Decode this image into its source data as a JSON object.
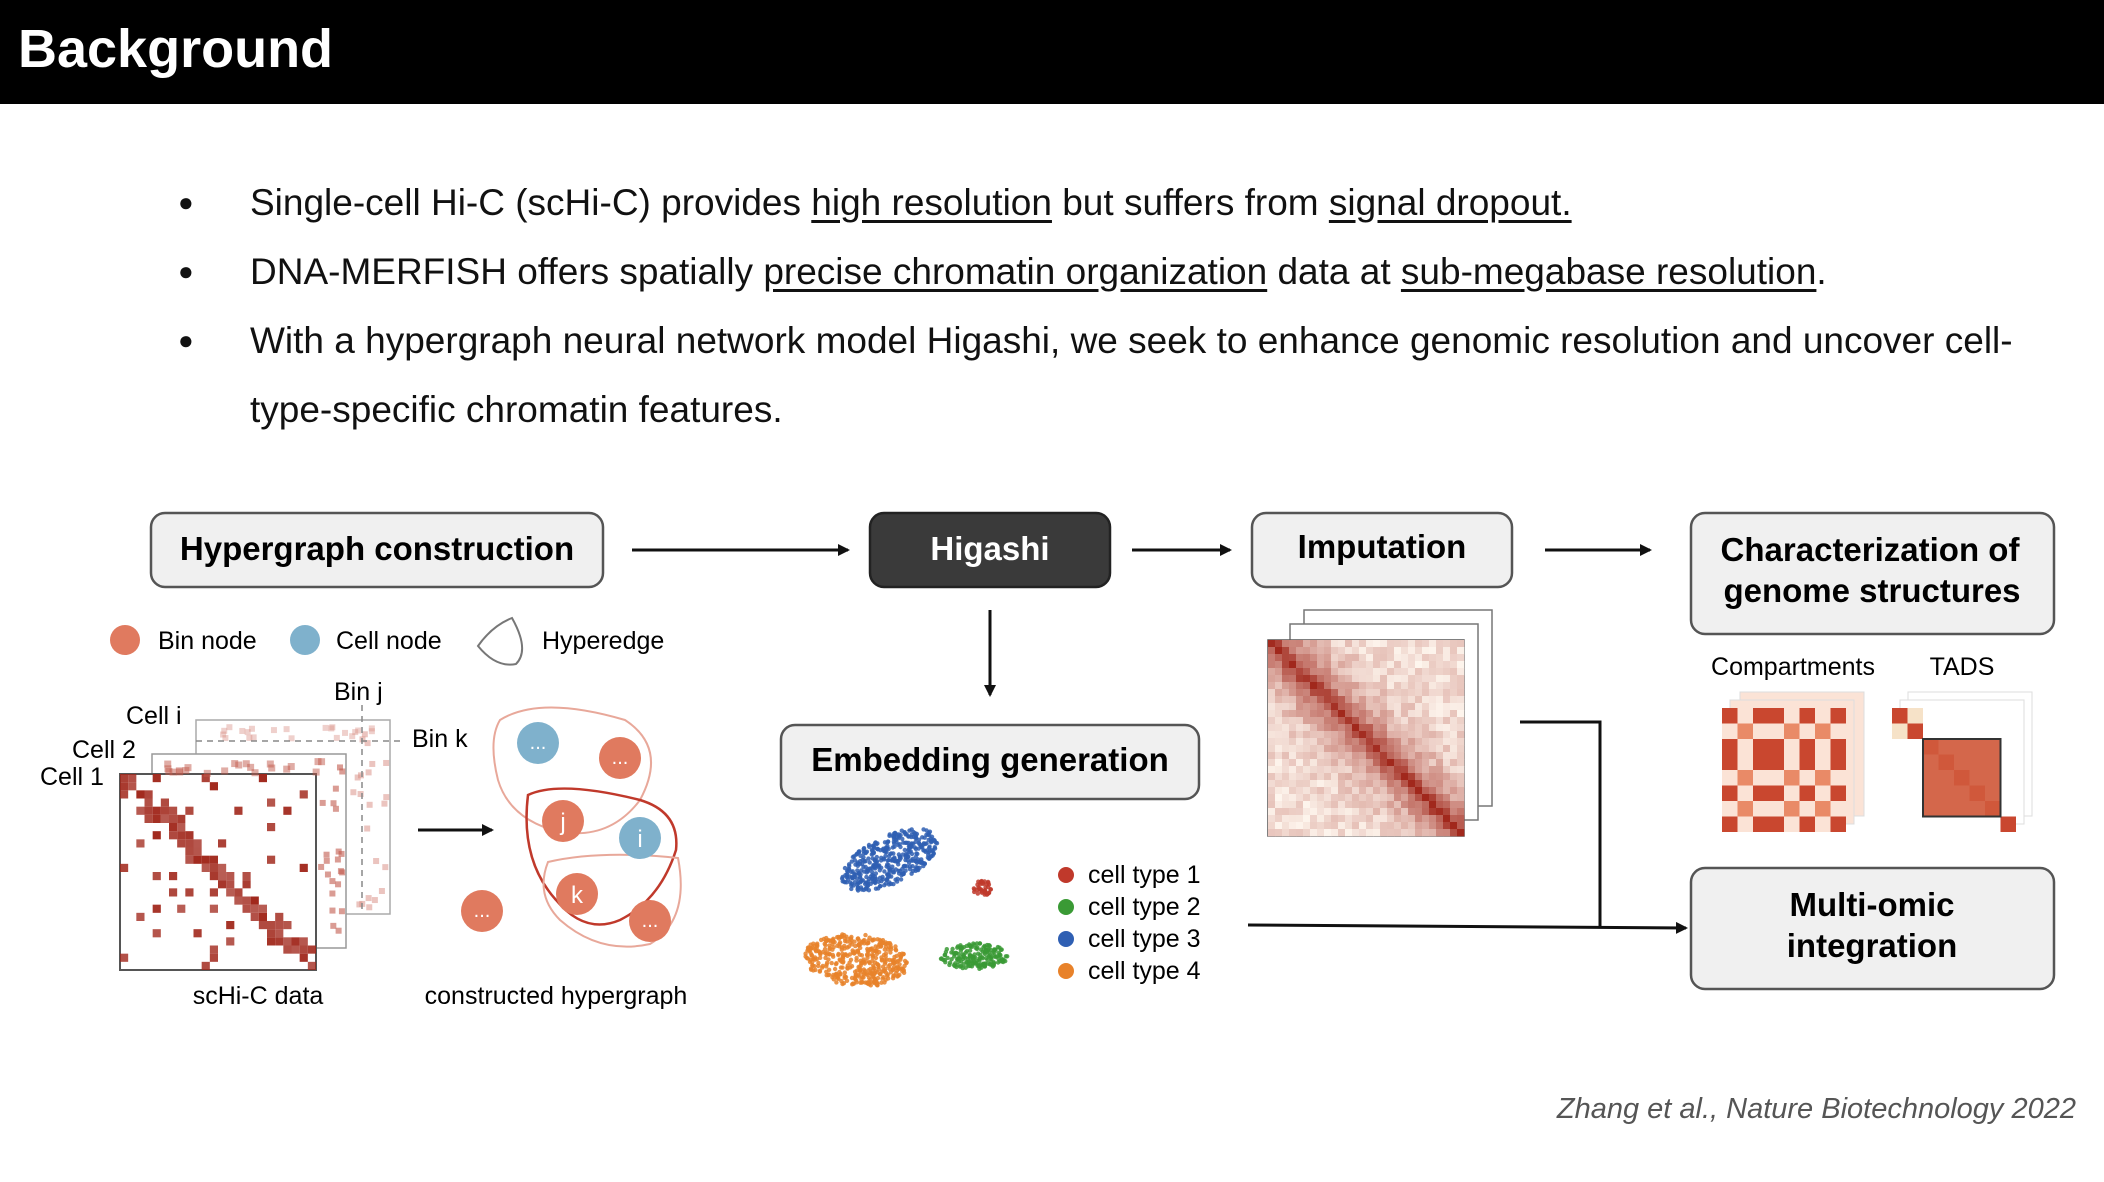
{
  "title": "Background",
  "bullets": [
    {
      "p1": "Single-cell Hi-C (scHi-C) provides ",
      "u1": "high resolution",
      "p2": " but suffers from ",
      "u2": "signal dropout.",
      "p3": ""
    },
    {
      "p1": "DNA-MERFISH offers spatially ",
      "u1": "precise chromatin organization",
      "p2": " data at ",
      "u2": "sub-megabase resolution",
      "p3": "."
    },
    {
      "text": "With a hypergraph neural network model Higashi, we seek to enhance genomic resolution and uncover cell-type-specific chromatin features."
    }
  ],
  "diagram": {
    "boxes": {
      "hypergraph": "Hypergraph construction",
      "higashi": "Higashi",
      "imputation": "Imputation",
      "characterization_l1": "Characterization of",
      "characterization_l2": "genome structures",
      "embedding": "Embedding generation",
      "multiomic_l1": "Multi-omic",
      "multiomic_l2": "integration"
    },
    "legend": {
      "bin_node": "Bin node",
      "cell_node": "Cell node",
      "hyperedge": "Hyperedge"
    },
    "matrix_labels": {
      "cell_i": "Cell i",
      "cell_2": "Cell 2",
      "cell_1": "Cell 1",
      "bin_j": "Bin j",
      "bin_k": "Bin k",
      "schic": "scHi-C data"
    },
    "hypergraph_labels": {
      "node_j": "j",
      "node_i": "i",
      "node_k": "k",
      "ellipsis": "...",
      "caption": "constructed hypergraph"
    },
    "embedding_legend": [
      {
        "label": "cell type 1",
        "color": "#c0392b"
      },
      {
        "label": "cell type 2",
        "color": "#3a9a35"
      },
      {
        "label": "cell type 3",
        "color": "#2f5fb3"
      },
      {
        "label": "cell type 4",
        "color": "#e8822a"
      }
    ],
    "structure_labels": {
      "compartments": "Compartments",
      "tads": "TADS"
    },
    "colors": {
      "bin_node": "#e07a5f",
      "cell_node": "#7fb1cc",
      "heat_dark": "#a1281c",
      "heat_light": "#fbe3d6"
    }
  },
  "citation": "Zhang et al., Nature Biotechnology 2022"
}
